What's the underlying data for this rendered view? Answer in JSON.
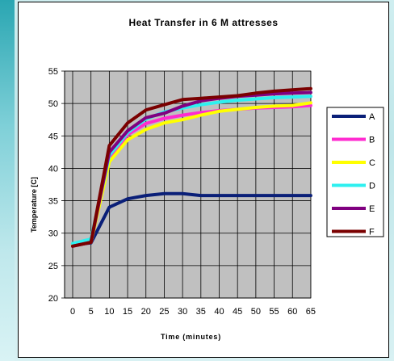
{
  "chart_data": {
    "type": "line",
    "title": "Heat Transfer in 6 M attresses",
    "xlabel": "Time (minutes)",
    "ylabel": "Temperature [C]",
    "x": [
      0,
      5,
      10,
      15,
      20,
      25,
      30,
      35,
      40,
      45,
      50,
      55,
      60,
      65
    ],
    "xticks": [
      "0",
      "5",
      "10",
      "15",
      "20",
      "25",
      "30",
      "35",
      "40",
      "45",
      "50",
      "55",
      "60",
      "65"
    ],
    "ylim": [
      20,
      55
    ],
    "yticks": [
      "20",
      "25",
      "30",
      "35",
      "40",
      "45",
      "50",
      "55"
    ],
    "grid": true,
    "legend_position": "right",
    "series": [
      {
        "name": "A",
        "color": "#0a1f78",
        "values": [
          28.2,
          28.5,
          34.0,
          35.3,
          35.8,
          36.1,
          36.1,
          35.8,
          35.8,
          35.8,
          35.8,
          35.8,
          35.8,
          35.8
        ]
      },
      {
        "name": "B",
        "color": "#ff2bd0",
        "values": [
          28.2,
          28.6,
          41.5,
          45.2,
          46.9,
          47.7,
          48.2,
          48.6,
          48.9,
          49.1,
          49.3,
          49.4,
          49.5,
          49.7
        ]
      },
      {
        "name": "C",
        "color": "#ffff00",
        "values": [
          28.2,
          28.6,
          41.0,
          44.4,
          46.0,
          47.0,
          47.5,
          48.2,
          48.8,
          49.1,
          49.4,
          49.6,
          49.7,
          50.1
        ]
      },
      {
        "name": "D",
        "color": "#2ef0f0",
        "values": [
          28.4,
          29.1,
          42.0,
          45.5,
          47.6,
          48.7,
          49.3,
          49.8,
          50.2,
          50.5,
          50.7,
          50.9,
          51.0,
          51.1
        ]
      },
      {
        "name": "E",
        "color": "#800080",
        "values": [
          28.0,
          28.6,
          42.5,
          45.8,
          47.8,
          48.5,
          49.6,
          50.4,
          50.8,
          51.1,
          51.3,
          51.5,
          51.6,
          51.7
        ]
      },
      {
        "name": "F",
        "color": "#7a0000",
        "values": [
          28.0,
          28.6,
          43.5,
          47.0,
          49.0,
          49.8,
          50.6,
          50.8,
          51.0,
          51.2,
          51.6,
          51.9,
          52.1,
          52.3
        ]
      }
    ]
  }
}
